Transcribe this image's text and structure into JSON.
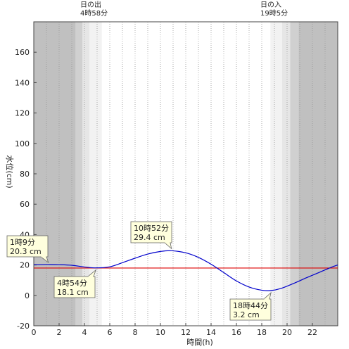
{
  "sun": {
    "sunrise_label": "日の出",
    "sunrise_time": "4時58分",
    "sunset_label": "日の入",
    "sunset_time": "19時5分"
  },
  "chart_data": {
    "type": "line",
    "xlabel": "時間(h)",
    "ylabel": "水位(cm)",
    "xlim": [
      0,
      24
    ],
    "ylim": [
      -20,
      180
    ],
    "x_ticks": [
      0,
      2,
      4,
      6,
      8,
      10,
      12,
      14,
      16,
      18,
      20,
      22
    ],
    "y_ticks": [
      -20,
      0,
      20,
      40,
      60,
      80,
      100,
      120,
      140,
      160
    ],
    "grid": "vertical-dotted",
    "series": [
      {
        "color": "#0000cc",
        "x": [
          0,
          1,
          1.15,
          2,
          3,
          4,
          4.9,
          6,
          7,
          8,
          9,
          10,
          10.87,
          12,
          13,
          14,
          15,
          16,
          17,
          18,
          18.73,
          19.5,
          20.5,
          21.5,
          22.5,
          23.5,
          24
        ],
        "y": [
          20.2,
          20.3,
          20.3,
          20.2,
          19.8,
          18.7,
          18.1,
          18.8,
          21.5,
          24.5,
          27.2,
          28.9,
          29.4,
          28.0,
          25.0,
          20.5,
          15.0,
          9.5,
          5.5,
          3.4,
          3.2,
          4.5,
          7.8,
          11.5,
          15.0,
          18.5,
          20.0
        ]
      }
    ],
    "reference_line": {
      "y": 18,
      "color": "#dd0000"
    },
    "night_shading": [
      [
        0,
        3.3
      ],
      [
        20.9,
        24
      ]
    ],
    "twilight_shading": [
      [
        3.3,
        4.4
      ],
      [
        19.6,
        20.9
      ]
    ],
    "sunrise_hour": 4.97,
    "sunset_hour": 19.08,
    "annotations": [
      {
        "time": "1時9分",
        "value": "20.3 cm",
        "x": 1.15,
        "y": 20.3
      },
      {
        "time": "4時54分",
        "value": "18.1 cm",
        "x": 4.9,
        "y": 18.1
      },
      {
        "time": "10時52分",
        "value": "29.4 cm",
        "x": 10.87,
        "y": 29.4
      },
      {
        "time": "18時44分",
        "value": "3.2 cm",
        "x": 18.73,
        "y": 3.2
      }
    ]
  }
}
